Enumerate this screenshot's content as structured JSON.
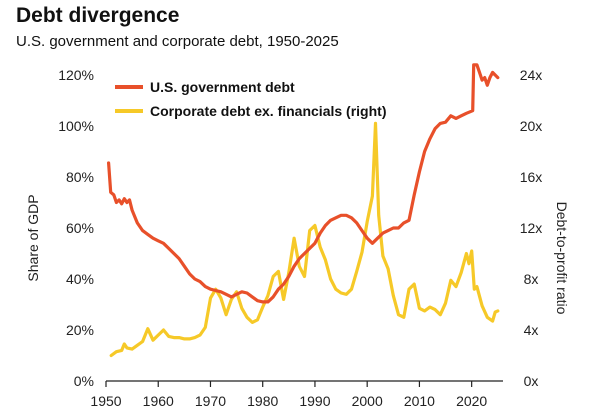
{
  "chart_data": {
    "type": "line",
    "title": "Debt divergence",
    "subtitle": "U.S. government and corporate debt, 1950-2025",
    "xlabel": "",
    "ylabel": "Share of GDP",
    "ylabel_right": "Debt-to-profit ratio",
    "xlim": [
      1950,
      2026
    ],
    "ylim": [
      0,
      120
    ],
    "ylim_right": [
      0,
      24
    ],
    "x_ticks": [
      "1950",
      "1960",
      "1970",
      "1980",
      "1990",
      "2000",
      "2010",
      "2020"
    ],
    "y_ticks_left": [
      "0%",
      "20%",
      "40%",
      "60%",
      "80%",
      "100%",
      "120%"
    ],
    "y_ticks_right": [
      "0x",
      "4x",
      "8x",
      "12x",
      "16x",
      "20x",
      "24x"
    ],
    "legend_position": "top-left",
    "colors": {
      "government": "#e8502a",
      "corporate": "#f6c928"
    },
    "series": [
      {
        "name": "U.S. government debt",
        "axis": "left",
        "points": [
          [
            1950.5,
            85.5
          ],
          [
            1950.9,
            74
          ],
          [
            1951.5,
            73
          ],
          [
            1952,
            70
          ],
          [
            1952.5,
            71
          ],
          [
            1953,
            69.5
          ],
          [
            1953.5,
            71.5
          ],
          [
            1954,
            70
          ],
          [
            1954.5,
            71
          ],
          [
            1955,
            67
          ],
          [
            1956,
            62
          ],
          [
            1957,
            59
          ],
          [
            1958,
            57.5
          ],
          [
            1959,
            56
          ],
          [
            1960,
            55
          ],
          [
            1961,
            54
          ],
          [
            1962,
            52
          ],
          [
            1963,
            50
          ],
          [
            1964,
            48
          ],
          [
            1965,
            45
          ],
          [
            1966,
            42
          ],
          [
            1967,
            40
          ],
          [
            1968,
            39
          ],
          [
            1969,
            37
          ],
          [
            1970,
            36
          ],
          [
            1971,
            35.5
          ],
          [
            1972,
            35
          ],
          [
            1973,
            34
          ],
          [
            1974,
            33
          ],
          [
            1975,
            34
          ],
          [
            1976,
            35
          ],
          [
            1977,
            34.5
          ],
          [
            1978,
            33
          ],
          [
            1979,
            31.5
          ],
          [
            1980,
            31
          ],
          [
            1981,
            31
          ],
          [
            1982,
            33
          ],
          [
            1983,
            36
          ],
          [
            1984,
            38
          ],
          [
            1985,
            41
          ],
          [
            1986,
            45
          ],
          [
            1987,
            48
          ],
          [
            1988,
            50
          ],
          [
            1989,
            52
          ],
          [
            1990,
            54
          ],
          [
            1991,
            58
          ],
          [
            1992,
            61
          ],
          [
            1993,
            63
          ],
          [
            1994,
            64
          ],
          [
            1995,
            65
          ],
          [
            1996,
            65
          ],
          [
            1997,
            64
          ],
          [
            1998,
            62
          ],
          [
            1999,
            59
          ],
          [
            2000,
            56
          ],
          [
            2001,
            54
          ],
          [
            2002,
            56
          ],
          [
            2003,
            58
          ],
          [
            2004,
            59
          ],
          [
            2005,
            60
          ],
          [
            2006,
            60
          ],
          [
            2007,
            62
          ],
          [
            2008,
            63
          ],
          [
            2009,
            73
          ],
          [
            2010,
            82
          ],
          [
            2011,
            90
          ],
          [
            2012,
            95
          ],
          [
            2013,
            99
          ],
          [
            2014,
            101
          ],
          [
            2015,
            101.5
          ],
          [
            2016,
            104
          ],
          [
            2017,
            103
          ],
          [
            2018,
            104
          ],
          [
            2019,
            105
          ],
          [
            2020.2,
            106
          ],
          [
            2020.4,
            124
          ],
          [
            2021,
            124
          ],
          [
            2021.5,
            121
          ],
          [
            2022,
            118
          ],
          [
            2022.5,
            119
          ],
          [
            2023,
            116
          ],
          [
            2023.5,
            119
          ],
          [
            2024,
            121
          ],
          [
            2024.5,
            120
          ],
          [
            2025,
            119
          ]
        ]
      },
      {
        "name": "Corporate debt ex. financials (right)",
        "axis": "right",
        "points": [
          [
            1951,
            2.0
          ],
          [
            1952,
            2.3
          ],
          [
            1953,
            2.4
          ],
          [
            1953.5,
            2.9
          ],
          [
            1954,
            2.6
          ],
          [
            1955,
            2.5
          ],
          [
            1956,
            2.8
          ],
          [
            1957,
            3.1
          ],
          [
            1958,
            4.1
          ],
          [
            1959,
            3.2
          ],
          [
            1960,
            3.6
          ],
          [
            1961,
            4.0
          ],
          [
            1962,
            3.5
          ],
          [
            1963,
            3.4
          ],
          [
            1964,
            3.4
          ],
          [
            1965,
            3.3
          ],
          [
            1966,
            3.3
          ],
          [
            1967,
            3.4
          ],
          [
            1968,
            3.6
          ],
          [
            1969,
            4.2
          ],
          [
            1970,
            6.5
          ],
          [
            1971,
            7.2
          ],
          [
            1972,
            6.5
          ],
          [
            1973,
            5.2
          ],
          [
            1974,
            6.4
          ],
          [
            1975,
            7.0
          ],
          [
            1976,
            5.7
          ],
          [
            1977,
            5.0
          ],
          [
            1978,
            4.6
          ],
          [
            1979,
            4.8
          ],
          [
            1980,
            5.8
          ],
          [
            1981,
            6.7
          ],
          [
            1982,
            8.2
          ],
          [
            1983,
            8.6
          ],
          [
            1984,
            6.4
          ],
          [
            1985,
            8.5
          ],
          [
            1986,
            11.2
          ],
          [
            1987,
            9.0
          ],
          [
            1988,
            8.2
          ],
          [
            1989,
            11.8
          ],
          [
            1990,
            12.2
          ],
          [
            1991,
            10.5
          ],
          [
            1992,
            9.5
          ],
          [
            1993,
            8.0
          ],
          [
            1994,
            7.2
          ],
          [
            1995,
            6.9
          ],
          [
            1996,
            6.8
          ],
          [
            1997,
            7.2
          ],
          [
            1998,
            8.6
          ],
          [
            1999,
            10.1
          ],
          [
            2000,
            12.5
          ],
          [
            2001,
            14.5
          ],
          [
            2001.6,
            20.2
          ],
          [
            2002.2,
            13.0
          ],
          [
            2003,
            9.8
          ],
          [
            2004,
            8.8
          ],
          [
            2005,
            6.7
          ],
          [
            2006,
            5.2
          ],
          [
            2007,
            5.0
          ],
          [
            2008,
            7.2
          ],
          [
            2009,
            7.6
          ],
          [
            2010,
            5.7
          ],
          [
            2011,
            5.5
          ],
          [
            2012,
            5.8
          ],
          [
            2013,
            5.6
          ],
          [
            2014,
            5.2
          ],
          [
            2015,
            6.1
          ],
          [
            2016,
            7.9
          ],
          [
            2017,
            7.4
          ],
          [
            2018,
            8.5
          ],
          [
            2019,
            10.0
          ],
          [
            2019.5,
            9.2
          ],
          [
            2020,
            10.2
          ],
          [
            2020.5,
            7.2
          ],
          [
            2021,
            7.4
          ],
          [
            2022,
            5.9
          ],
          [
            2023,
            5.0
          ],
          [
            2024,
            4.7
          ],
          [
            2024.5,
            5.4
          ],
          [
            2025,
            5.5
          ]
        ]
      }
    ]
  }
}
